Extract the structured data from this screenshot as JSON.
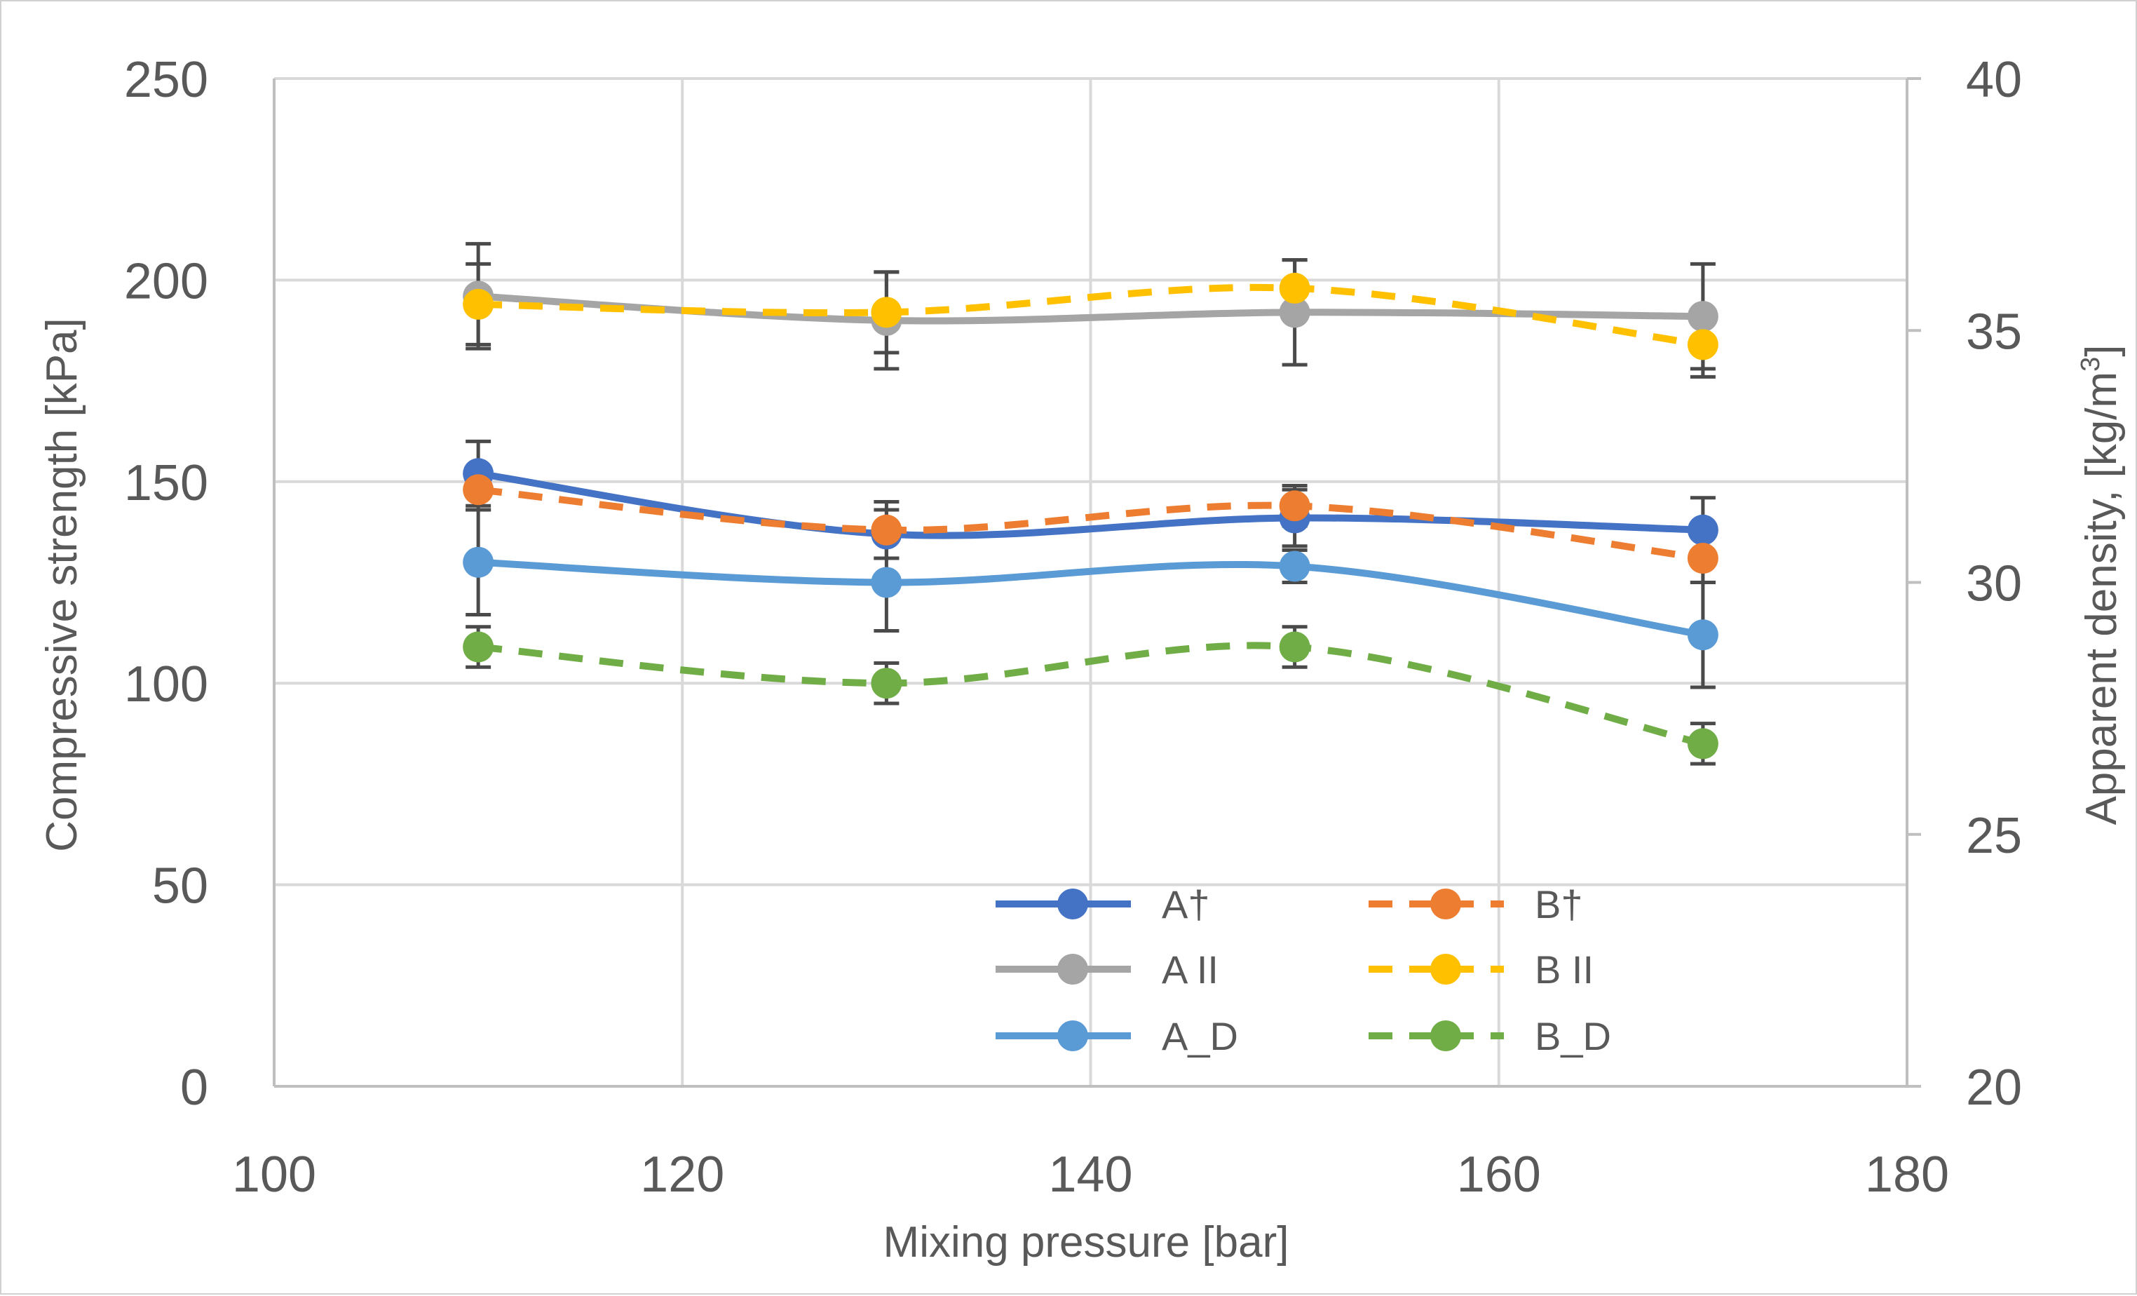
{
  "chart_data": {
    "type": "line",
    "title": "",
    "xlabel": "Mixing pressure [bar]",
    "ylabel_left": "Compressive strength  [kPa]",
    "ylabel_right_prefix": "Apparent density, [kg/m",
    "ylabel_right_sup": "3",
    "ylabel_right_suffix": "]",
    "xlim": [
      100,
      180
    ],
    "ylim_left": [
      0,
      250
    ],
    "ylim_right": [
      20,
      40
    ],
    "x_ticks": [
      100,
      120,
      140,
      160,
      180
    ],
    "y_left_ticks": [
      0,
      50,
      100,
      150,
      200,
      250
    ],
    "y_right_ticks": [
      20,
      25,
      30,
      35,
      40
    ],
    "grid": true,
    "legend_position": "lower-center, inside plot",
    "x": [
      110,
      130,
      150,
      170
    ],
    "series": [
      {
        "name": "A†",
        "axis": "left",
        "style": "solid",
        "color": "#4472C4",
        "values": [
          152,
          137,
          141,
          138
        ],
        "errors": [
          8,
          6,
          7,
          8
        ]
      },
      {
        "name": "B†",
        "axis": "left",
        "style": "dashed",
        "color": "#ED7D31",
        "values": [
          148,
          138,
          144,
          131
        ],
        "errors": [
          5,
          7,
          5,
          6
        ]
      },
      {
        "name": "A II",
        "axis": "left",
        "style": "solid",
        "color": "#A5A5A5",
        "values": [
          196,
          190,
          192,
          191
        ],
        "errors": [
          13,
          12,
          13,
          13
        ]
      },
      {
        "name": "B II",
        "axis": "left",
        "style": "dashed",
        "color": "#FFC000",
        "values": [
          194,
          192,
          198,
          184
        ],
        "errors": [
          10,
          10,
          7,
          8
        ]
      },
      {
        "name": "A_D",
        "axis": "left",
        "style": "solid",
        "color": "#5B9BD5",
        "values": [
          130,
          125,
          129,
          112
        ],
        "errors": [
          13,
          12,
          4,
          13
        ]
      },
      {
        "name": "B_D",
        "axis": "left",
        "style": "dashed",
        "color": "#70AD47",
        "values": [
          109,
          100,
          109,
          85
        ],
        "errors": [
          5,
          5,
          5,
          5
        ]
      }
    ],
    "legend_order": [
      "A†",
      "B†",
      "A II",
      "B II",
      "A_D",
      "B_D"
    ]
  }
}
